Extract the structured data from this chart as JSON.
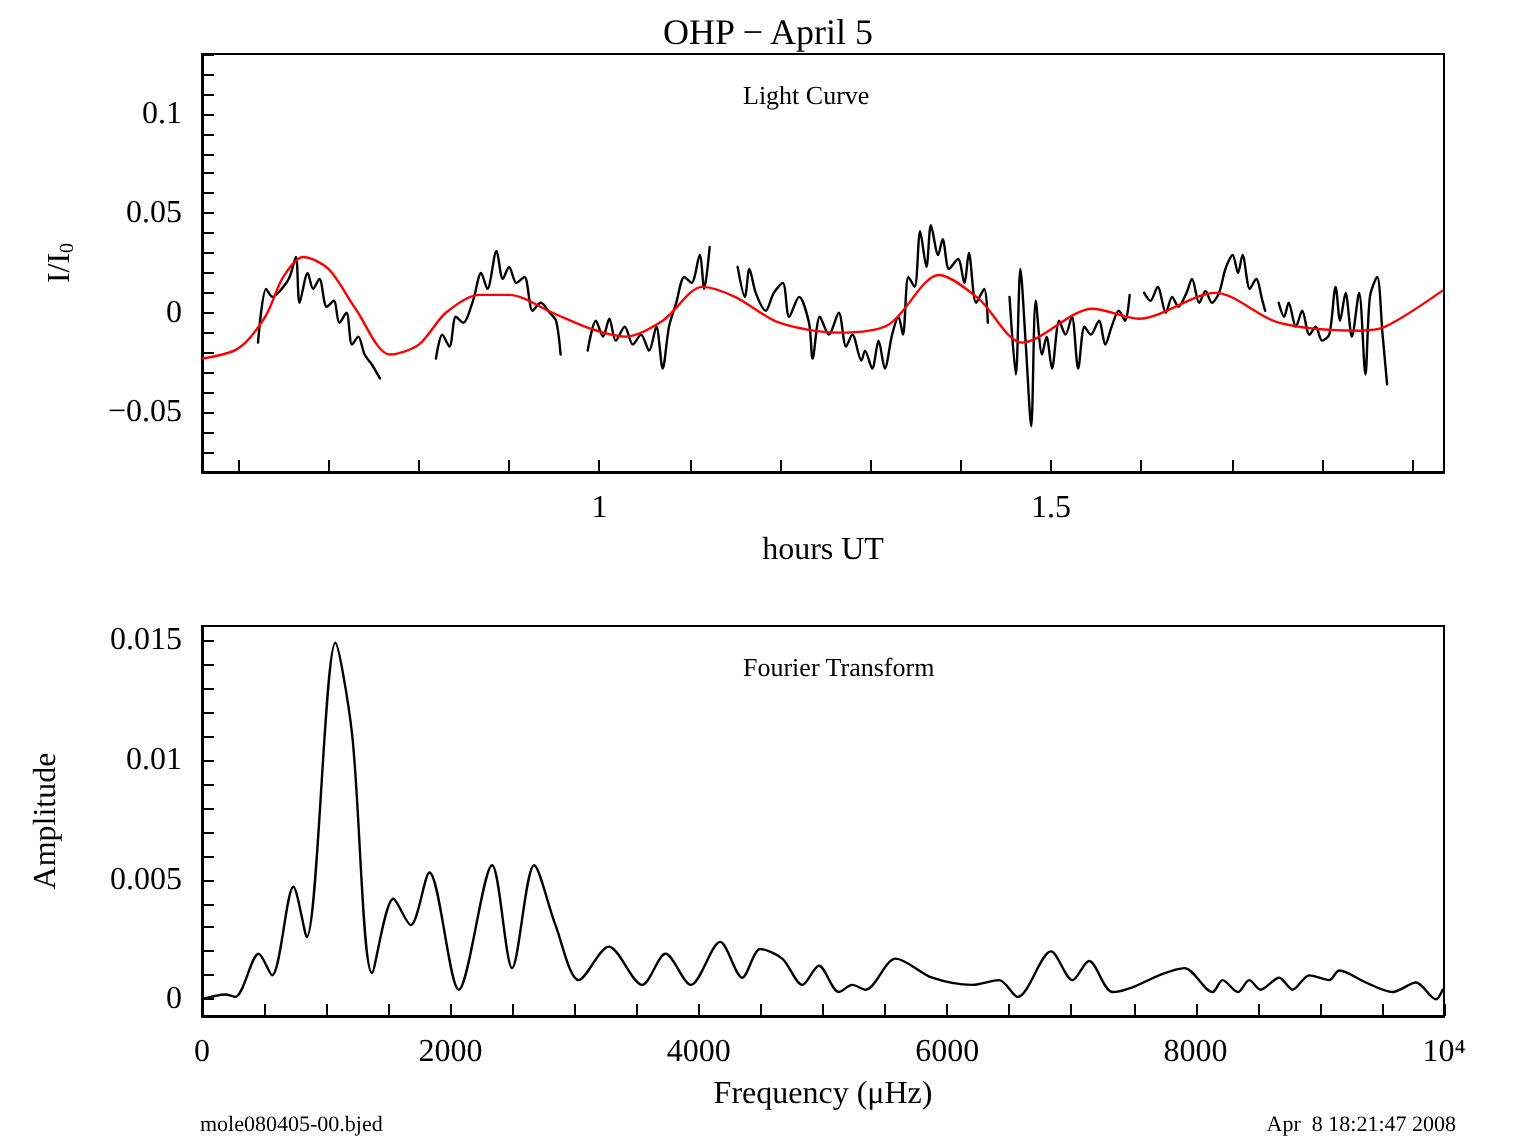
{
  "chart_data": [
    {
      "type": "line",
      "title": "OHP − April 5",
      "xlabel": "hours UT",
      "ylabel": "I/I$_{0}$",
      "annotations": [
        "Light Curve"
      ],
      "grid": false,
      "marker": "none",
      "line_style": "solid",
      "xlim": [
        0.56,
        1.935
      ],
      "ylim": [
        -0.08,
        0.13
      ],
      "xticks": [
        {
          "value": 0.6,
          "label": null
        },
        {
          "value": 0.7,
          "label": null
        },
        {
          "value": 0.8,
          "label": null
        },
        {
          "value": 0.9,
          "label": null
        },
        1,
        {
          "value": 1.1,
          "label": null
        },
        {
          "value": 1.2,
          "label": null
        },
        {
          "value": 1.3,
          "label": null
        },
        {
          "value": 1.4,
          "label": null
        },
        1.5,
        {
          "value": 1.6,
          "label": null
        },
        {
          "value": 1.7,
          "label": null
        },
        {
          "value": 1.8,
          "label": null
        },
        {
          "value": 1.9,
          "label": null
        }
      ],
      "yticks": [
        {
          "value": -0.08,
          "label": null
        },
        {
          "value": -0.07,
          "label": null
        },
        {
          "value": -0.06,
          "label": null
        },
        {
          "value": -0.05,
          "label": "−0.05"
        },
        {
          "value": -0.04,
          "label": null
        },
        {
          "value": -0.03,
          "label": null
        },
        {
          "value": -0.02,
          "label": null
        },
        {
          "value": -0.01,
          "label": null
        },
        0,
        {
          "value": 0.01,
          "label": null
        },
        {
          "value": 0.02,
          "label": null
        },
        {
          "value": 0.03,
          "label": null
        },
        {
          "value": 0.04,
          "label": null
        },
        0.05,
        {
          "value": 0.06,
          "label": null
        },
        {
          "value": 0.07,
          "label": null
        },
        {
          "value": 0.08,
          "label": null
        },
        {
          "value": 0.09,
          "label": null
        },
        0.1,
        {
          "value": 0.11,
          "label": null
        },
        {
          "value": 0.12,
          "label": null
        },
        {
          "value": 0.13,
          "label": null
        }
      ],
      "series": [
        {
          "color": "#000000",
          "x": [
            0.622,
            0.631,
            0.638,
            0.65,
            0.657,
            0.664,
            0.668,
            0.677,
            0.683,
            0.69,
            0.698,
            0.706,
            0.712,
            0.72,
            0.726,
            0.733,
            0.74,
            0.748,
            0.757,
            0.788,
            0.819,
            0.826,
            0.834,
            0.841,
            0.849,
            0.86,
            0.869,
            0.876,
            0.886,
            0.893,
            0.9,
            0.908,
            0.917,
            0.926,
            0.935,
            0.945,
            0.952,
            0.957,
            0.972,
            0.987,
            0.996,
            1.004,
            1.011,
            1.018,
            1.028,
            1.037,
            1.046,
            1.055,
            1.063,
            1.07,
            1.077,
            1.085,
            1.094,
            1.102,
            1.111,
            1.116,
            1.122,
            1.137,
            1.153,
            1.161,
            1.166,
            1.173,
            1.184,
            1.193,
            1.203,
            1.21,
            1.221,
            1.232,
            1.236,
            1.244,
            1.254,
            1.265,
            1.273,
            1.28,
            1.29,
            1.294,
            1.302,
            1.309,
            1.316,
            1.324,
            1.331,
            1.336,
            1.342,
            1.349,
            1.355,
            1.362,
            1.367,
            1.375,
            1.38,
            1.387,
            1.397,
            1.404,
            1.409,
            1.417,
            1.426,
            1.43,
            1.442,
            1.454,
            1.461,
            1.466,
            1.472,
            1.478,
            1.483,
            1.49,
            1.495,
            1.501,
            1.509,
            1.516,
            1.523,
            1.53,
            1.537,
            1.544,
            1.553,
            1.56,
            1.567,
            1.575,
            1.582,
            1.587,
            1.595,
            1.603,
            1.61,
            1.618,
            1.627,
            1.634,
            1.641,
            1.65,
            1.656,
            1.664,
            1.671,
            1.678,
            1.686,
            1.693,
            1.701,
            1.707,
            1.712,
            1.72,
            1.727,
            1.734,
            1.737,
            1.745,
            1.752,
            1.758,
            1.763,
            1.771,
            1.778,
            1.786,
            1.793,
            1.8,
            1.808,
            1.815,
            1.82,
            1.826,
            1.833,
            1.841,
            1.848,
            1.853,
            1.861,
            1.867,
            1.872
          ],
          "values": [
            -0.015,
            0.012,
            0.008,
            0.013,
            0.018,
            0.028,
            0.005,
            0.02,
            0.012,
            0.017,
            0.003,
            0.006,
            -0.005,
            0,
            -0.016,
            -0.012,
            -0.021,
            -0.026,
            -0.033,
            null,
            -0.023,
            -0.011,
            -0.017,
            -0.002,
            -0.005,
            0.006,
            0.02,
            0.012,
            0.031,
            0.017,
            0.023,
            0.015,
            0.018,
            0.001,
            0.005,
            0,
            -0.004,
            -0.021,
            null,
            -0.019,
            -0.004,
            -0.012,
            -0.003,
            -0.014,
            -0.007,
            -0.016,
            -0.011,
            -0.019,
            -0.007,
            -0.028,
            -0.007,
            0.005,
            0.018,
            0.015,
            0.029,
            0.012,
            0.033,
            null,
            0.023,
            0.008,
            0.022,
            0.01,
            0.001,
            0.01,
            0.015,
            -0.002,
            0.008,
            -0.005,
            -0.023,
            -0.002,
            -0.011,
            0,
            -0.017,
            -0.011,
            -0.024,
            -0.019,
            -0.028,
            -0.014,
            -0.028,
            -0.011,
            -0.002,
            -0.011,
            0.018,
            0.013,
            0.041,
            0.023,
            0.044,
            0.029,
            0.037,
            0.022,
            0.027,
            0.015,
            0.03,
            0.005,
            0.012,
            -0.005,
            null,
            0.008,
            -0.031,
            0.022,
            -0.016,
            -0.057,
            0.006,
            -0.021,
            -0.012,
            -0.028,
            -0.004,
            -0.011,
            -0.002,
            -0.028,
            -0.007,
            -0.011,
            -0.004,
            -0.016,
            -0.007,
            0.001,
            -0.004,
            0.009,
            null,
            0.01,
            0.006,
            0.013,
            0,
            0.008,
            0.003,
            0.01,
            0.017,
            0.005,
            0.011,
            0.005,
            0.01,
            0.022,
            0.029,
            0.02,
            0.029,
            0.012,
            0.017,
            0.006,
            0.001,
            null,
            0.005,
            -0.002,
            0.005,
            -0.007,
            0.001,
            -0.011,
            -0.007,
            -0.014,
            -0.011,
            0.013,
            -0.004,
            0.01,
            -0.012,
            0.01,
            -0.031,
            0.008,
            0.018,
            -0.011,
            -0.036
          ]
        },
        {
          "color": "#ff0000",
          "x": [
            0.561,
            0.6,
            0.63,
            0.65,
            0.672,
            0.7,
            0.73,
            0.768,
            0.8,
            0.83,
            0.867,
            0.9,
            0.948,
            0.99,
            1.029,
            1.07,
            1.114,
            1.15,
            1.199,
            1.265,
            1.32,
            1.376,
            1.42,
            1.468,
            1.546,
            1.597,
            1.682,
            1.752,
            1.841,
            1.87,
            1.933
          ],
          "values": [
            -0.023,
            -0.018,
            -0.002,
            0.018,
            0.028,
            0.022,
            0.002,
            -0.021,
            -0.016,
            0,
            0.009,
            0.009,
            0,
            -0.008,
            -0.012,
            -0.004,
            0.013,
            0.008,
            -0.005,
            -0.01,
            -0.006,
            0.019,
            0.007,
            -0.015,
            0.002,
            -0.003,
            0.01,
            -0.005,
            -0.009,
            -0.007,
            0.011
          ]
        }
      ]
    },
    {
      "type": "line",
      "xlabel": "Frequency (μHz)",
      "ylabel": "Amplitude",
      "annotations": [
        "Fourier Transform",
        "mole080405-00.bjed",
        "Apr  8 18:21:47 2008"
      ],
      "grid": false,
      "marker": "none",
      "line_style": "solid",
      "xlim": [
        0,
        10000
      ],
      "ylim": [
        -0.0007,
        0.0156
      ],
      "xticks": [
        0,
        {
          "value": 500,
          "label": null
        },
        {
          "value": 1000,
          "label": null
        },
        {
          "value": 1500,
          "label": null
        },
        2000,
        {
          "value": 2500,
          "label": null
        },
        {
          "value": 3000,
          "label": null
        },
        {
          "value": 3500,
          "label": null
        },
        4000,
        {
          "value": 4500,
          "label": null
        },
        {
          "value": 5000,
          "label": null
        },
        {
          "value": 5500,
          "label": null
        },
        6000,
        {
          "value": 6500,
          "label": null
        },
        {
          "value": 7000,
          "label": null
        },
        {
          "value": 7500,
          "label": null
        },
        8000,
        {
          "value": 8500,
          "label": null
        },
        {
          "value": 9000,
          "label": null
        },
        {
          "value": 9500,
          "label": null
        },
        {
          "value": 10000,
          "label": "10⁴"
        }
      ],
      "yticks": [
        0,
        {
          "value": 0.001,
          "label": null
        },
        {
          "value": 0.002,
          "label": null
        },
        {
          "value": 0.003,
          "label": null
        },
        {
          "value": 0.004,
          "label": null
        },
        0.005,
        {
          "value": 0.006,
          "label": null
        },
        {
          "value": 0.007,
          "label": null
        },
        {
          "value": 0.008,
          "label": null
        },
        {
          "value": 0.009,
          "label": null
        },
        0.01,
        {
          "value": 0.011,
          "label": null
        },
        {
          "value": 0.012,
          "label": null
        },
        {
          "value": 0.013,
          "label": null
        },
        {
          "value": 0.014,
          "label": null
        },
        0.015
      ],
      "series": [
        {
          "color": "#000000",
          "x": [
            0,
            188,
            268,
            456,
            564,
            736,
            843,
            1074,
            1208,
            1369,
            1541,
            1681,
            1831,
            2067,
            2336,
            2497,
            2674,
            2846,
            3034,
            3276,
            3544,
            3732,
            3936,
            4172,
            4350,
            4495,
            4672,
            4833,
            4967,
            5128,
            5235,
            5343,
            5585,
            5880,
            6203,
            6418,
            6568,
            6836,
            7008,
            7142,
            7330,
            7491,
            7706,
            7910,
            8136,
            8217,
            8340,
            8432,
            8523,
            8673,
            8781,
            8915,
            9076,
            9157,
            9371,
            9586,
            9774,
            9935,
            9989
          ],
          "values": [
            0,
            0.0002,
            0.0001,
            0.0019,
            0.001,
            0.0047,
            0.0026,
            0.0149,
            0.0111,
            0.0011,
            0.0042,
            0.0031,
            0.0053,
            0.0004,
            0.0056,
            0.0013,
            0.0056,
            0.0031,
            0.0008,
            0.0022,
            0.0006,
            0.0019,
            0.0006,
            0.0024,
            0.0009,
            0.0021,
            0.0017,
            0.0006,
            0.0014,
            0.0003,
            0.0006,
            0.0004,
            0.0017,
            0.0009,
            0.0006,
            0.0008,
            0.0001,
            0.002,
            0.0008,
            0.0016,
            0.0003,
            0.0005,
            0.001,
            0.0013,
            0.0003,
            0.0008,
            0.0003,
            0.0008,
            0.0004,
            0.0009,
            0.0004,
            0.001,
            0.0008,
            0.0012,
            0.0007,
            0.0003,
            0.0007,
            0,
            0.0004
          ]
        }
      ]
    }
  ]
}
